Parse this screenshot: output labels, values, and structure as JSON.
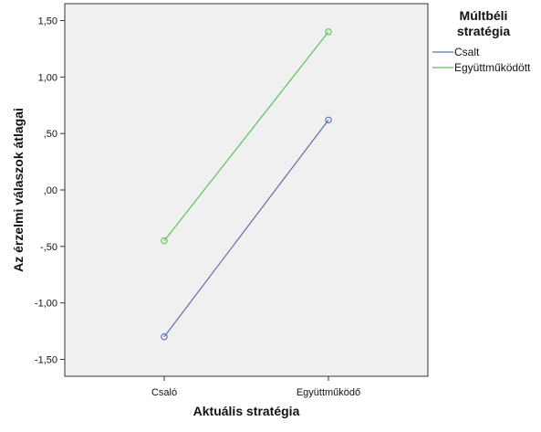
{
  "chart_data": {
    "type": "line",
    "xlabel": "Aktuális stratégia",
    "ylabel": "Az érzelmi válaszok átlagai",
    "categories": [
      "Csaló",
      "Együttműködő"
    ],
    "ylim": [
      -1.65,
      1.65
    ],
    "yticks": [
      1.5,
      1.0,
      0.5,
      0.0,
      -0.5,
      -1.0,
      -1.5
    ],
    "ytick_labels": [
      "1,50",
      "1,00",
      ",50",
      ",00",
      "-,50",
      "-1,00",
      "-1,50"
    ],
    "grid": false,
    "legend_title": "Múltbéli stratégia",
    "legend_title_lines": [
      "Múltbéli",
      "stratégia"
    ],
    "legend_position": "right",
    "plot_background": "#f0f0f0",
    "series": [
      {
        "name": "Csalt",
        "color": "#5a6fae",
        "values": [
          -1.3,
          0.62
        ]
      },
      {
        "name": "Együttműködött",
        "color": "#5cc15c",
        "values": [
          -0.45,
          1.4
        ]
      }
    ]
  }
}
